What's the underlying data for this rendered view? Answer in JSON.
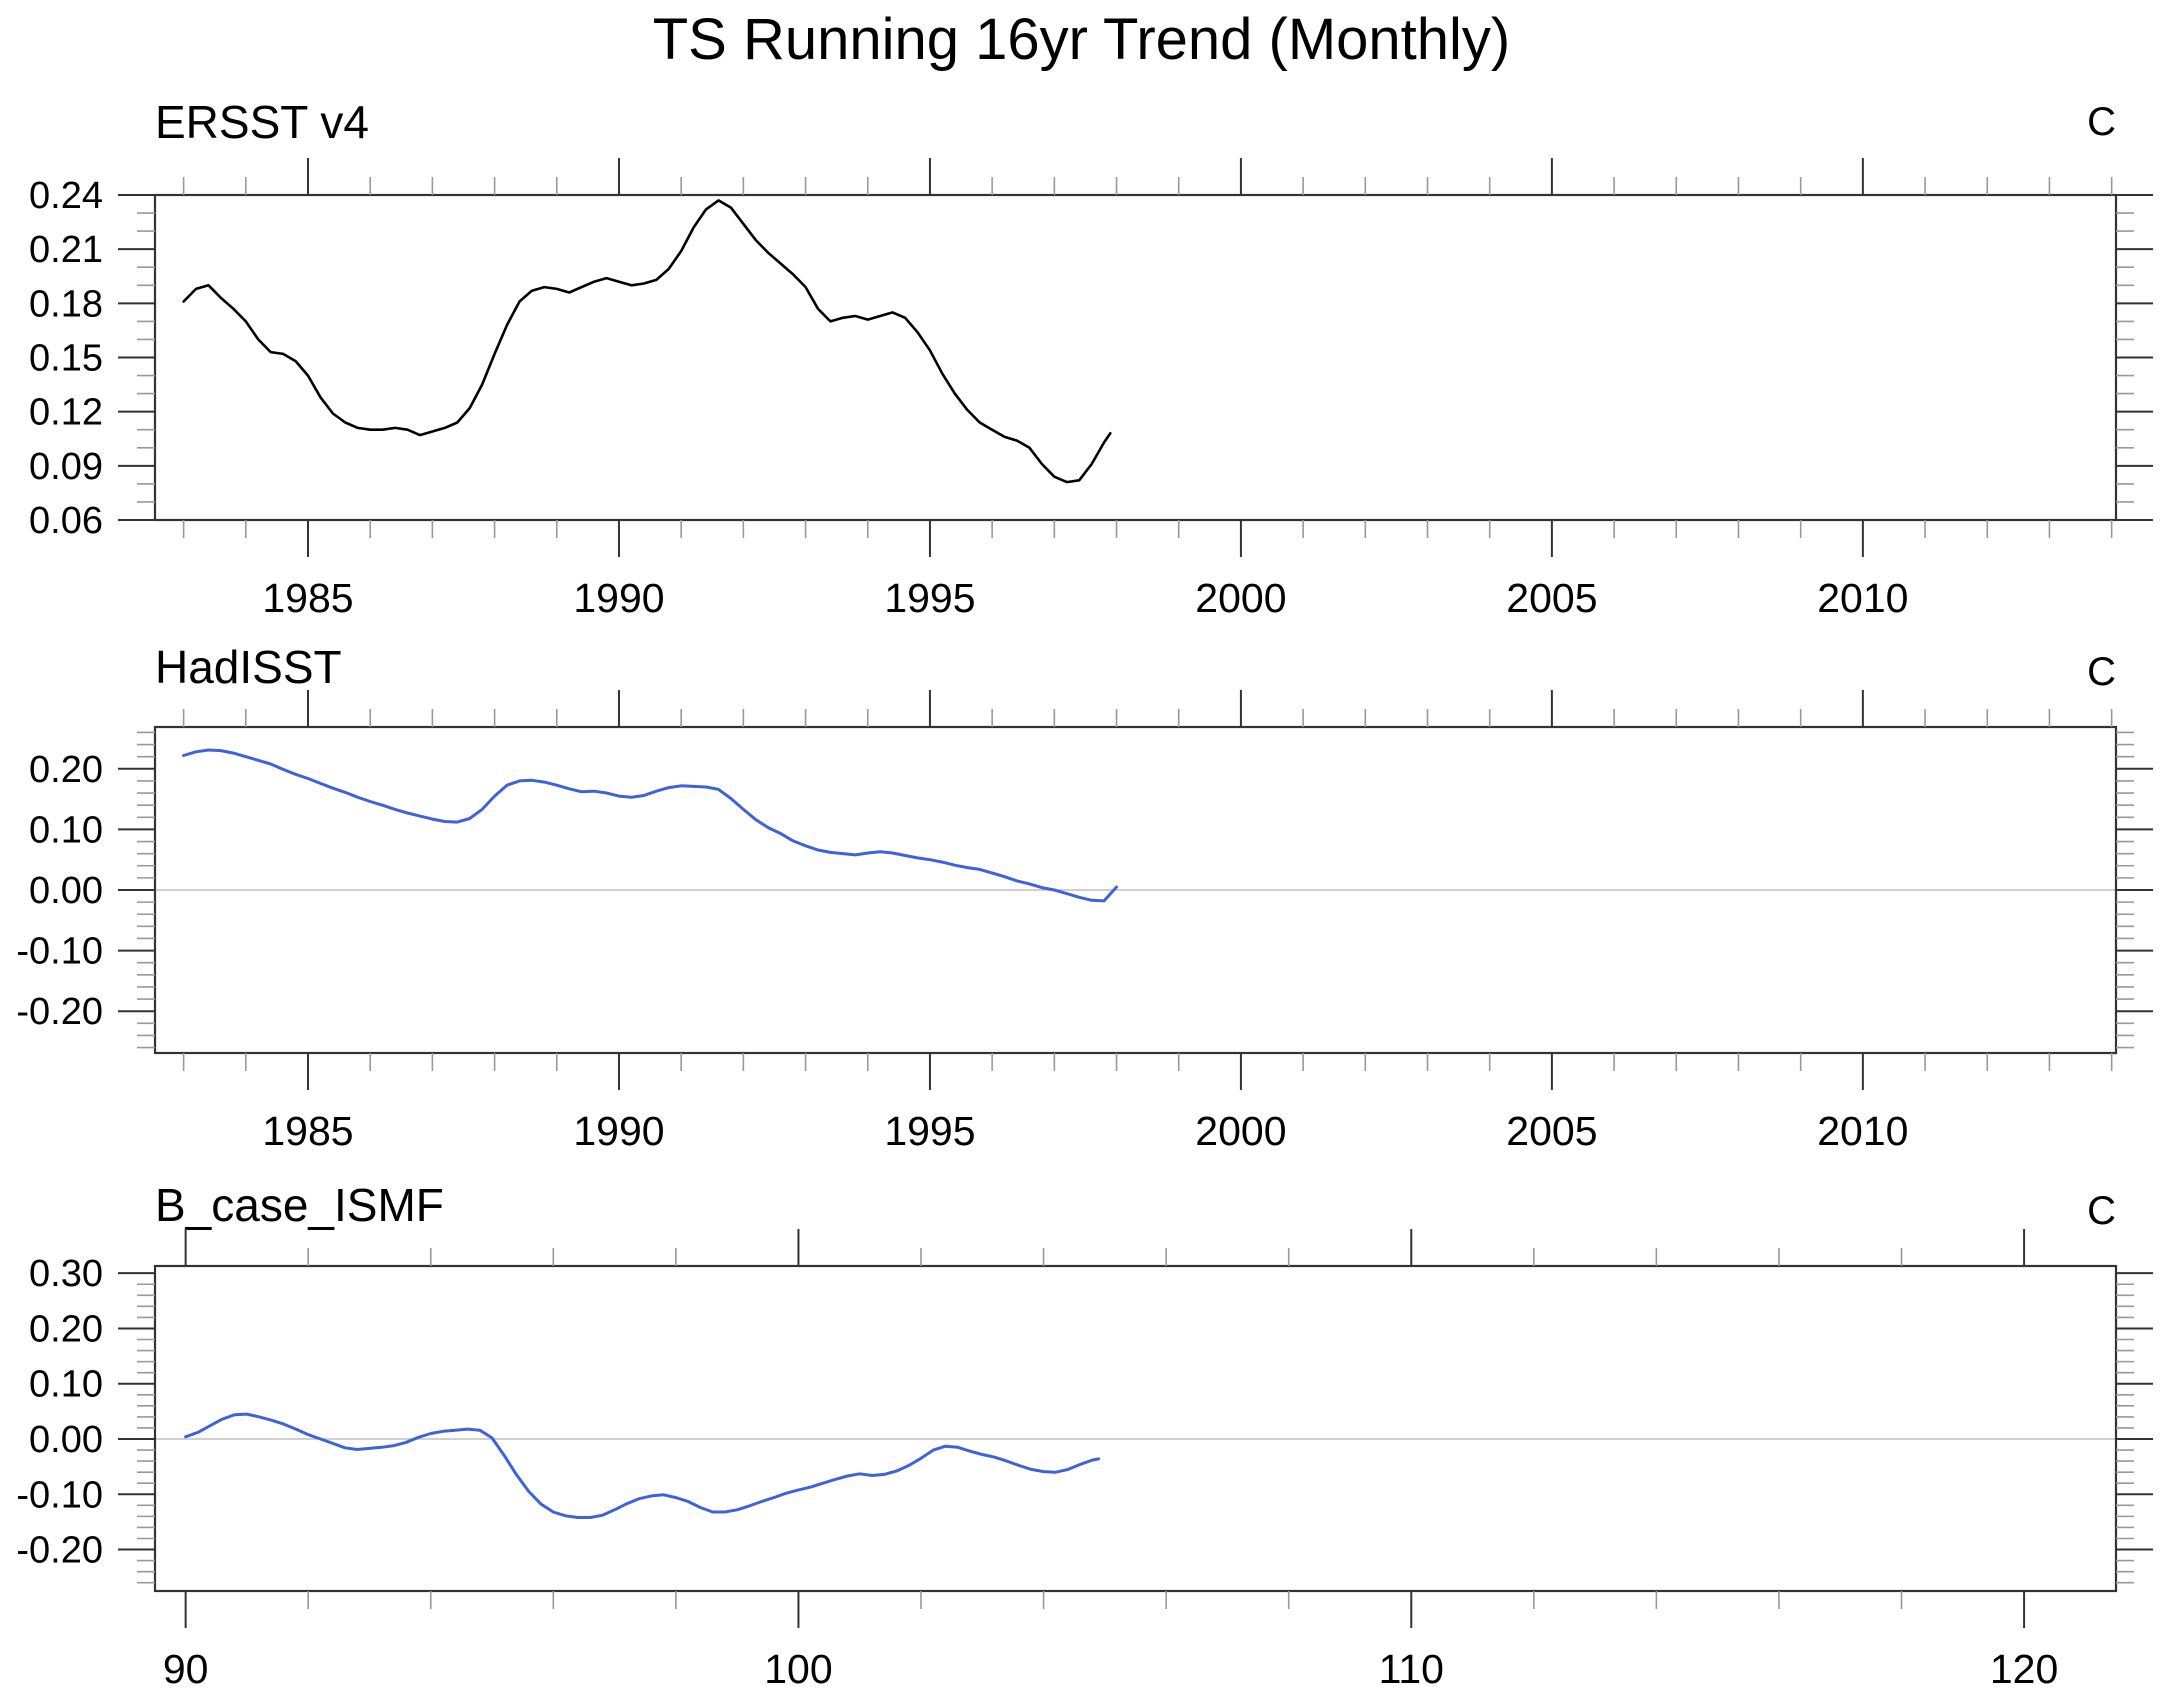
{
  "title": "TS Running 16yr Trend (Monthly)",
  "colors": {
    "black_line": "#000000",
    "blue_line": "#4062d8",
    "zero_line": "#b5b5b5",
    "frame": "#333333",
    "tick_major": "#333333",
    "tick_minor": "#999999",
    "text": "#000000",
    "background": "#ffffff"
  },
  "chart_data": [
    {
      "type": "line",
      "title": "ERSST v4",
      "unit_label": "C",
      "xlim": [
        1982.54,
        2014.07
      ],
      "ylim": [
        0.06,
        0.24
      ],
      "x_major_ticks": [
        1985,
        1990,
        1995,
        2000,
        2005,
        2010
      ],
      "x_minor_step": 1,
      "y_major_ticks": [
        0.06,
        0.09,
        0.12,
        0.15,
        0.18,
        0.21,
        0.24
      ],
      "y_minor_step": 0.01,
      "y_label_decimals": 2,
      "zero_line": false,
      "line_color": "#000000",
      "line_width": 2.6,
      "legend_position": "none",
      "grid": false,
      "series": [
        {
          "name": "ERSST v4",
          "x": [
            1983.0,
            1983.2,
            1983.4,
            1983.6,
            1983.8,
            1984.0,
            1984.2,
            1984.4,
            1984.6,
            1984.8,
            1985.0,
            1985.2,
            1985.4,
            1985.6,
            1985.8,
            1986.0,
            1986.2,
            1986.4,
            1986.6,
            1986.8,
            1987.0,
            1987.2,
            1987.4,
            1987.6,
            1987.8,
            1988.0,
            1988.2,
            1988.4,
            1988.6,
            1988.8,
            1989.0,
            1989.2,
            1989.4,
            1989.6,
            1989.8,
            1990.0,
            1990.2,
            1990.4,
            1990.6,
            1990.8,
            1991.0,
            1991.2,
            1991.4,
            1991.6,
            1991.8,
            1992.0,
            1992.2,
            1992.4,
            1992.6,
            1992.8,
            1993.0,
            1993.2,
            1993.4,
            1993.6,
            1993.8,
            1994.0,
            1994.2,
            1994.4,
            1994.6,
            1994.8,
            1995.0,
            1995.2,
            1995.4,
            1995.6,
            1995.8,
            1996.0,
            1996.2,
            1996.4,
            1996.6,
            1996.8,
            1997.0,
            1997.2,
            1997.4,
            1997.6,
            1997.8,
            1997.9
          ],
          "y": [
            0.181,
            0.188,
            0.19,
            0.183,
            0.177,
            0.17,
            0.16,
            0.153,
            0.152,
            0.148,
            0.14,
            0.128,
            0.119,
            0.114,
            0.111,
            0.11,
            0.11,
            0.111,
            0.11,
            0.107,
            0.109,
            0.111,
            0.114,
            0.122,
            0.135,
            0.152,
            0.168,
            0.181,
            0.187,
            0.189,
            0.188,
            0.186,
            0.189,
            0.192,
            0.194,
            0.192,
            0.19,
            0.191,
            0.193,
            0.199,
            0.209,
            0.222,
            0.232,
            0.237,
            0.233,
            0.224,
            0.215,
            0.208,
            0.202,
            0.196,
            0.189,
            0.177,
            0.17,
            0.172,
            0.173,
            0.171,
            0.173,
            0.175,
            0.172,
            0.164,
            0.154,
            0.141,
            0.13,
            0.121,
            0.114,
            0.11,
            0.106,
            0.104,
            0.1,
            0.091,
            0.084,
            0.081,
            0.082,
            0.091,
            0.103,
            0.108
          ]
        }
      ]
    },
    {
      "type": "line",
      "title": "HadISST",
      "unit_label": "C",
      "xlim": [
        1982.54,
        2014.07
      ],
      "ylim": [
        -0.269,
        0.269
      ],
      "x_major_ticks": [
        1985,
        1990,
        1995,
        2000,
        2005,
        2010
      ],
      "x_minor_step": 1,
      "y_major_ticks": [
        -0.2,
        -0.1,
        0.0,
        0.1,
        0.2
      ],
      "y_minor_step": 0.02,
      "y_label_decimals": 2,
      "zero_line": true,
      "line_color": "#4062d8",
      "line_width": 3,
      "legend_position": "none",
      "grid": false,
      "series": [
        {
          "name": "HadISST",
          "x": [
            1983.0,
            1983.2,
            1983.4,
            1983.6,
            1983.8,
            1984.0,
            1984.2,
            1984.4,
            1984.6,
            1984.8,
            1985.0,
            1985.2,
            1985.4,
            1985.6,
            1985.8,
            1986.0,
            1986.2,
            1986.4,
            1986.6,
            1986.8,
            1987.0,
            1987.2,
            1987.4,
            1987.6,
            1987.8,
            1988.0,
            1988.2,
            1988.4,
            1988.6,
            1988.8,
            1989.0,
            1989.2,
            1989.4,
            1989.6,
            1989.8,
            1990.0,
            1990.2,
            1990.4,
            1990.6,
            1990.8,
            1991.0,
            1991.2,
            1991.4,
            1991.6,
            1991.8,
            1992.0,
            1992.2,
            1992.4,
            1992.6,
            1992.8,
            1993.0,
            1993.2,
            1993.4,
            1993.6,
            1993.8,
            1994.0,
            1994.2,
            1994.4,
            1994.6,
            1994.8,
            1995.0,
            1995.2,
            1995.4,
            1995.6,
            1995.8,
            1996.0,
            1996.2,
            1996.4,
            1996.6,
            1996.8,
            1997.0,
            1997.2,
            1997.4,
            1997.6,
            1997.8,
            1998.0
          ],
          "y": [
            0.222,
            0.228,
            0.231,
            0.23,
            0.226,
            0.22,
            0.214,
            0.208,
            0.199,
            0.191,
            0.184,
            0.176,
            0.168,
            0.161,
            0.153,
            0.146,
            0.14,
            0.133,
            0.127,
            0.122,
            0.117,
            0.113,
            0.112,
            0.118,
            0.133,
            0.155,
            0.173,
            0.18,
            0.181,
            0.178,
            0.173,
            0.167,
            0.162,
            0.163,
            0.16,
            0.155,
            0.153,
            0.156,
            0.163,
            0.169,
            0.172,
            0.171,
            0.17,
            0.166,
            0.151,
            0.133,
            0.116,
            0.103,
            0.093,
            0.081,
            0.073,
            0.066,
            0.062,
            0.06,
            0.058,
            0.061,
            0.063,
            0.061,
            0.057,
            0.053,
            0.05,
            0.046,
            0.041,
            0.037,
            0.034,
            0.028,
            0.022,
            0.015,
            0.01,
            0.004,
            0.0,
            -0.006,
            -0.012,
            -0.017,
            -0.018,
            0.005
          ]
        }
      ]
    },
    {
      "type": "line",
      "title": "B_case_ISMF",
      "unit_label": "C",
      "xlim": [
        89.5,
        121.5
      ],
      "ylim": [
        -0.275,
        0.313
      ],
      "x_major_ticks": [
        90,
        100,
        110,
        120
      ],
      "x_minor_step": 2,
      "y_major_ticks": [
        -0.2,
        -0.1,
        0.0,
        0.1,
        0.2,
        0.3
      ],
      "y_minor_step": 0.02,
      "y_label_decimals": 2,
      "zero_line": true,
      "line_color": "#4062d8",
      "line_width": 3,
      "legend_position": "none",
      "grid": false,
      "series": [
        {
          "name": "B_case_ISMF",
          "x": [
            90.0,
            90.2,
            90.4,
            90.6,
            90.8,
            91.0,
            91.2,
            91.4,
            91.6,
            91.8,
            92.0,
            92.2,
            92.4,
            92.6,
            92.8,
            93.0,
            93.2,
            93.4,
            93.6,
            93.8,
            94.0,
            94.2,
            94.4,
            94.6,
            94.8,
            95.0,
            95.2,
            95.4,
            95.6,
            95.8,
            96.0,
            96.2,
            96.4,
            96.6,
            96.8,
            97.0,
            97.2,
            97.4,
            97.6,
            97.8,
            98.0,
            98.2,
            98.4,
            98.6,
            98.8,
            99.0,
            99.2,
            99.4,
            99.6,
            99.8,
            100.0,
            100.2,
            100.4,
            100.6,
            100.8,
            101.0,
            101.2,
            101.4,
            101.6,
            101.8,
            102.0,
            102.2,
            102.4,
            102.6,
            102.8,
            103.0,
            103.2,
            103.4,
            103.6,
            103.8,
            104.0,
            104.2,
            104.4,
            104.6,
            104.8,
            104.9
          ],
          "y": [
            0.004,
            0.012,
            0.024,
            0.036,
            0.044,
            0.045,
            0.04,
            0.034,
            0.027,
            0.018,
            0.008,
            0.0,
            -0.008,
            -0.016,
            -0.019,
            -0.017,
            -0.015,
            -0.012,
            -0.006,
            0.003,
            0.01,
            0.014,
            0.016,
            0.018,
            0.016,
            0.002,
            -0.03,
            -0.065,
            -0.095,
            -0.118,
            -0.132,
            -0.139,
            -0.142,
            -0.142,
            -0.138,
            -0.128,
            -0.117,
            -0.108,
            -0.103,
            -0.101,
            -0.106,
            -0.113,
            -0.124,
            -0.132,
            -0.132,
            -0.128,
            -0.121,
            -0.113,
            -0.106,
            -0.098,
            -0.092,
            -0.087,
            -0.08,
            -0.073,
            -0.067,
            -0.063,
            -0.066,
            -0.064,
            -0.058,
            -0.048,
            -0.035,
            -0.02,
            -0.013,
            -0.015,
            -0.022,
            -0.028,
            -0.033,
            -0.04,
            -0.048,
            -0.055,
            -0.059,
            -0.06,
            -0.055,
            -0.046,
            -0.038,
            -0.036
          ]
        }
      ]
    }
  ]
}
